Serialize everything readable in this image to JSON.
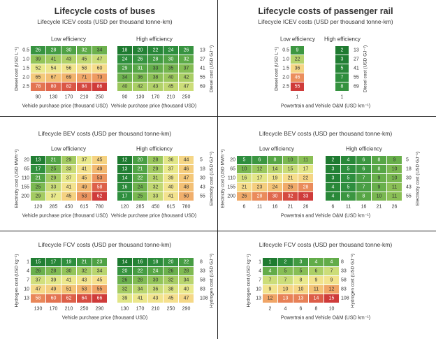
{
  "chart_data": [
    {
      "id": "bus_icev",
      "type": "heatmap",
      "title": "Lifecycle costs of buses",
      "subtitle": "Lifecycle ICEV costs (USD per thousand tonne-km)",
      "panels": [
        {
          "label": "Low efficiency",
          "x": [
            "90",
            "130",
            "170",
            "210",
            "250"
          ],
          "values": [
            [
              26,
              28,
              30,
              32,
              34
            ],
            [
              39,
              41,
              43,
              45,
              47
            ],
            [
              52,
              54,
              56,
              58,
              60
            ],
            [
              65,
              67,
              69,
              71,
              73
            ],
            [
              78,
              80,
              82,
              84,
              86
            ]
          ]
        },
        {
          "label": "High efficiency",
          "x": [
            "90",
            "130",
            "170",
            "210",
            "250"
          ],
          "values": [
            [
              18,
              20,
              22,
              24,
              26
            ],
            [
              24,
              26,
              28,
              30,
              32
            ],
            [
              29,
              31,
              33,
              35,
              37
            ],
            [
              34,
              36,
              38,
              40,
              42
            ],
            [
              40,
              42,
              43,
              45,
              47
            ]
          ]
        }
      ],
      "y_left": [
        "0.5",
        "1.0",
        "1.5",
        "2.0",
        "2.5"
      ],
      "y_right": [
        "13",
        "27",
        "41",
        "55",
        "69"
      ],
      "ylabel_left": "Diesel cost (USD L⁻¹)",
      "ylabel_right": "Diesel cost (USD GJ⁻¹)",
      "xlabel": "Vehicle purchase price (thousand USD)"
    },
    {
      "id": "rail_icev",
      "type": "heatmap",
      "title": "Lifecycle costs of passenger rail",
      "subtitle": "Lifecycle ICEV costs (USD per thousand tonne-km)",
      "panels": [
        {
          "label": "Low efficiency",
          "x": [
            "1"
          ],
          "values": [
            [
              9
            ],
            [
              22
            ],
            [
              36
            ],
            [
              46
            ],
            [
              55
            ]
          ]
        },
        {
          "label": "High efficiency",
          "x": [
            "1"
          ],
          "values": [
            [
              2
            ],
            [
              3
            ],
            [
              5
            ],
            [
              7
            ],
            [
              8
            ]
          ]
        }
      ],
      "y_left": [
        "0.5",
        "1.0",
        "1.5",
        "2.0",
        "2.5"
      ],
      "y_right": [
        "13",
        "27",
        "41",
        "55",
        "69"
      ],
      "ylabel_left": "Diesel cost (USD L⁻¹)",
      "ylabel_right": "Diesel cost (USD GJ⁻¹)",
      "xlabel": "Powertrain and Vehicle O&M (USD km⁻¹)"
    },
    {
      "id": "bus_bev",
      "type": "heatmap",
      "subtitle": "Lifecycle BEV costs (USD per thousand tonne-km)",
      "panels": [
        {
          "label": "Low efficiency",
          "x": [
            "120",
            "285",
            "450",
            "615",
            "780"
          ],
          "values": [
            [
              13,
              21,
              29,
              37,
              45
            ],
            [
              17,
              25,
              33,
              41,
              49
            ],
            [
              21,
              29,
              37,
              45,
              53
            ],
            [
              25,
              33,
              41,
              49,
              58
            ],
            [
              29,
              37,
              45,
              53,
              62
            ]
          ]
        },
        {
          "label": "High efficiency",
          "x": [
            "120",
            "285",
            "450",
            "615",
            "780"
          ],
          "values": [
            [
              12,
              20,
              28,
              36,
              44
            ],
            [
              13,
              21,
              29,
              37,
              46
            ],
            [
              14,
              22,
              31,
              39,
              47
            ],
            [
              16,
              24,
              32,
              40,
              48
            ],
            [
              17,
              25,
              33,
              41,
              50
            ]
          ]
        }
      ],
      "y_left": [
        "20",
        "65",
        "110",
        "155",
        "200"
      ],
      "y_right": [
        "5",
        "18",
        "30",
        "43",
        "55"
      ],
      "ylabel_left": "Electricity cost (USD MWh⁻¹)",
      "ylabel_right": "Electricity cost (USD GJ⁻¹)",
      "xlabel": "Vehicle purchase price (thousand USD)"
    },
    {
      "id": "rail_bev",
      "type": "heatmap",
      "subtitle": "Lifecycle BEV costs (USD per thousand tonne-km)",
      "panels": [
        {
          "label": "Low efficiency",
          "x": [
            "6",
            "11",
            "16",
            "21",
            "26"
          ],
          "values": [
            [
              5,
              6,
              8,
              10,
              11
            ],
            [
              10,
              12,
              14,
              15,
              17
            ],
            [
              16,
              17,
              19,
              21,
              22
            ],
            [
              21,
              23,
              24,
              26,
              28
            ],
            [
              26,
              28,
              30,
              32,
              33
            ]
          ]
        },
        {
          "label": "High efficiency",
          "x": [
            "6",
            "11",
            "16",
            "21",
            "26"
          ],
          "values": [
            [
              2,
              4,
              6,
              8,
              9
            ],
            [
              3,
              5,
              6,
              8,
              10
            ],
            [
              3,
              5,
              7,
              9,
              10
            ],
            [
              4,
              5,
              7,
              9,
              11
            ],
            [
              4,
              6,
              8,
              10,
              11
            ]
          ]
        }
      ],
      "y_left": [
        "20",
        "65",
        "110",
        "155",
        "200"
      ],
      "y_right": [
        "5",
        "18",
        "30",
        "43",
        "55"
      ],
      "ylabel_left": "Electricity cost (USD MWh⁻¹)",
      "ylabel_right": "Electricity cost (USD GJ⁻¹)",
      "xlabel": "Powertrain and Vehicle O&M (USD km⁻¹)"
    },
    {
      "id": "bus_fcv",
      "type": "heatmap",
      "subtitle": "Lifecycle FCV costs (USD per thousand tonne-km)",
      "panels": [
        {
          "label": "",
          "x": [
            "130",
            "170",
            "210",
            "250",
            "290"
          ],
          "values": [
            [
              15,
              17,
              19,
              21,
              23
            ],
            [
              26,
              28,
              30,
              32,
              34
            ],
            [
              37,
              39,
              41,
              43,
              45
            ],
            [
              47,
              49,
              51,
              53,
              55
            ],
            [
              58,
              60,
              62,
              64,
              66
            ]
          ]
        },
        {
          "label": "",
          "x": [
            "130",
            "170",
            "210",
            "250",
            "290"
          ],
          "values": [
            [
              14,
              16,
              18,
              20,
              22
            ],
            [
              20,
              22,
              24,
              26,
              28
            ],
            [
              26,
              28,
              30,
              32,
              34
            ],
            [
              32,
              34,
              36,
              38,
              40
            ],
            [
              39,
              41,
              43,
              45,
              47
            ]
          ]
        }
      ],
      "y_left": [
        "1",
        "4",
        "7",
        "10",
        "13"
      ],
      "y_right": [
        "8",
        "33",
        "58",
        "83",
        "108"
      ],
      "ylabel_left": "Hydrogen cost (USD kg⁻¹)",
      "ylabel_right": "Hydrogen cost (USD GJ⁻¹)",
      "xlabel": "Vehicle purchase price (thousand USD)"
    },
    {
      "id": "rail_fcv",
      "type": "heatmap",
      "subtitle": "Lifecycle FCV costs (USD per thousand tonne-km)",
      "panels": [
        {
          "label": "",
          "x": [
            "2",
            "4",
            "6",
            "8",
            "10"
          ],
          "values": [
            [
              1,
              2,
              3,
              4,
              4
            ],
            [
              4,
              5,
              5,
              6,
              7
            ],
            [
              7,
              7,
              8,
              9,
              9
            ],
            [
              9,
              10,
              10,
              11,
              12
            ],
            [
              12,
              13,
              13,
              14,
              15
            ]
          ]
        }
      ],
      "y_left": [
        "1",
        "4",
        "7",
        "10",
        "13"
      ],
      "y_right": [
        "8",
        "33",
        "58",
        "83",
        "108"
      ],
      "ylabel_left": "Hydrogen cost (USD kg⁻¹)",
      "ylabel_right": "Hydrogen cost (USD GJ⁻¹)",
      "xlabel": "Powertrain and Vehicle O&M (USD km⁻¹)"
    }
  ],
  "colors": {
    "scale": [
      "#1e7a30",
      "#2f8f3e",
      "#5aa847",
      "#8fc257",
      "#c1d872",
      "#e9e98c",
      "#f6e08e",
      "#f4c879",
      "#ef9f63",
      "#e16b4e",
      "#cf3b3a"
    ],
    "divider": "#222222",
    "text": "#333333"
  }
}
